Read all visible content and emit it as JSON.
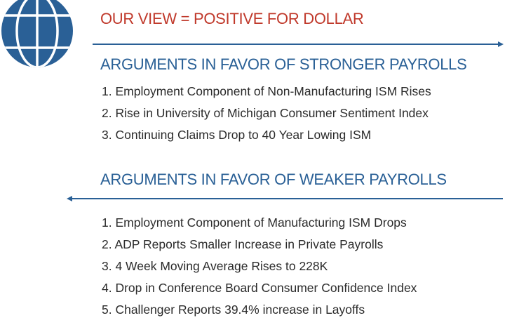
{
  "colors": {
    "accent_red": "#c0392b",
    "accent_blue": "#2a6096",
    "text": "#2b2b2b"
  },
  "logo": {
    "icon": "globe-icon"
  },
  "title": "OUR VIEW = POSITIVE FOR DOLLAR",
  "stronger": {
    "heading": "ARGUMENTS IN FAVOR OF STRONGER PAYROLLS",
    "arrow": "arrow-right-icon",
    "items": [
      "1. Employment Component of Non-Manufacturing ISM Rises",
      "2. Rise in University of Michigan Consumer Sentiment Index",
      "3. Continuing Claims Drop to 40 Year Lowing ISM"
    ]
  },
  "weaker": {
    "heading": "ARGUMENTS IN FAVOR OF WEAKER PAYROLLS",
    "arrow": "arrow-left-icon",
    "items": [
      "1. Employment Component of Manufacturing ISM Drops",
      "2. ADP Reports Smaller Increase in Private Payrolls",
      "3. 4 Week Moving Average Rises to 228K",
      "4. Drop in Conference Board Consumer Confidence Index",
      "5. Challenger Reports 39.4% increase in Layoffs"
    ]
  }
}
